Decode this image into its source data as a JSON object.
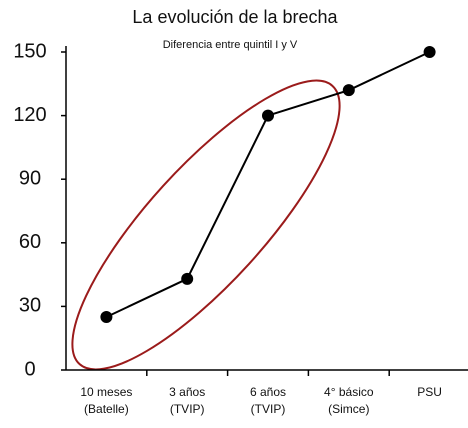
{
  "chart_data": {
    "type": "line",
    "title": "La evolución de la brecha",
    "subtitle": "Diferencia entre quintil I y V",
    "categories": [
      [
        "10 meses",
        "(Batelle)"
      ],
      [
        "3 años",
        "(TVIP)"
      ],
      [
        "6 años",
        "(TVIP)"
      ],
      [
        "4° básico",
        "(Simce)"
      ],
      [
        "PSU"
      ]
    ],
    "values": [
      25,
      43,
      120,
      132,
      150
    ],
    "color": "#000000",
    "ylim": [
      0,
      150
    ],
    "yticks": [
      0,
      30,
      60,
      90,
      120,
      150
    ],
    "grid": false
  }
}
